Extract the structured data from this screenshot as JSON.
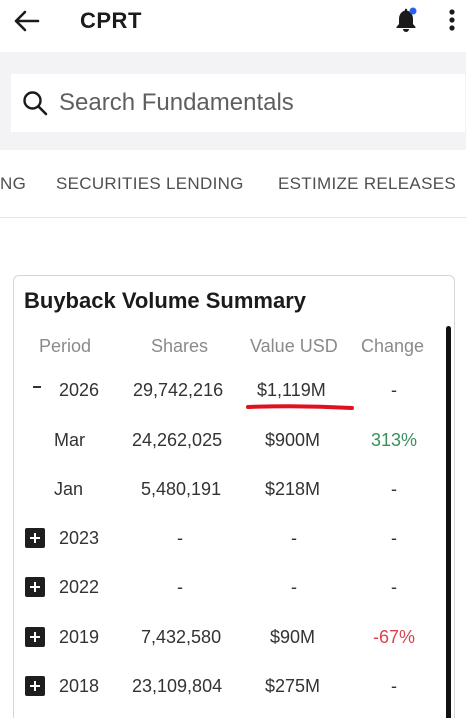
{
  "header": {
    "title": "CPRT",
    "back_icon": "arrow-left-icon",
    "bell_icon": "bell-icon",
    "notification_dot_color": "#2563eb",
    "more_icon": "more-vertical-icon"
  },
  "search": {
    "placeholder": "Search Fundamentals",
    "value": ""
  },
  "tabs": [
    {
      "label": "NG"
    },
    {
      "label": "SECURITIES LENDING"
    },
    {
      "label": "ESTIMIZE RELEASES"
    }
  ],
  "card": {
    "title": "Buyback Volume Summary",
    "columns": [
      "Period",
      "Shares",
      "Value USD",
      "Change"
    ],
    "rows": [
      {
        "period": "2026",
        "shares": "29,742,216",
        "value": "$1,119M",
        "change": "-",
        "toggle": "collapse",
        "highlighted": true
      },
      {
        "period": "Mar",
        "shares": "24,262,025",
        "value": "$900M",
        "change": "313%",
        "change_color": "#3a8f5c"
      },
      {
        "period": "Jan",
        "shares": "5,480,191",
        "value": "$218M",
        "change": "-"
      },
      {
        "period": "2023",
        "shares": "-",
        "value": "-",
        "change": "-",
        "toggle": "expand"
      },
      {
        "period": "2022",
        "shares": "-",
        "value": "-",
        "change": "-",
        "toggle": "expand"
      },
      {
        "period": "2019",
        "shares": "7,432,580",
        "value": "$90M",
        "change": "-67%",
        "change_color": "#d64550",
        "toggle": "expand"
      },
      {
        "period": "2018",
        "shares": "23,109,804",
        "value": "$275M",
        "change": "-",
        "toggle": "expand"
      }
    ]
  },
  "annotation": {
    "underline_color": "#e0101e"
  }
}
